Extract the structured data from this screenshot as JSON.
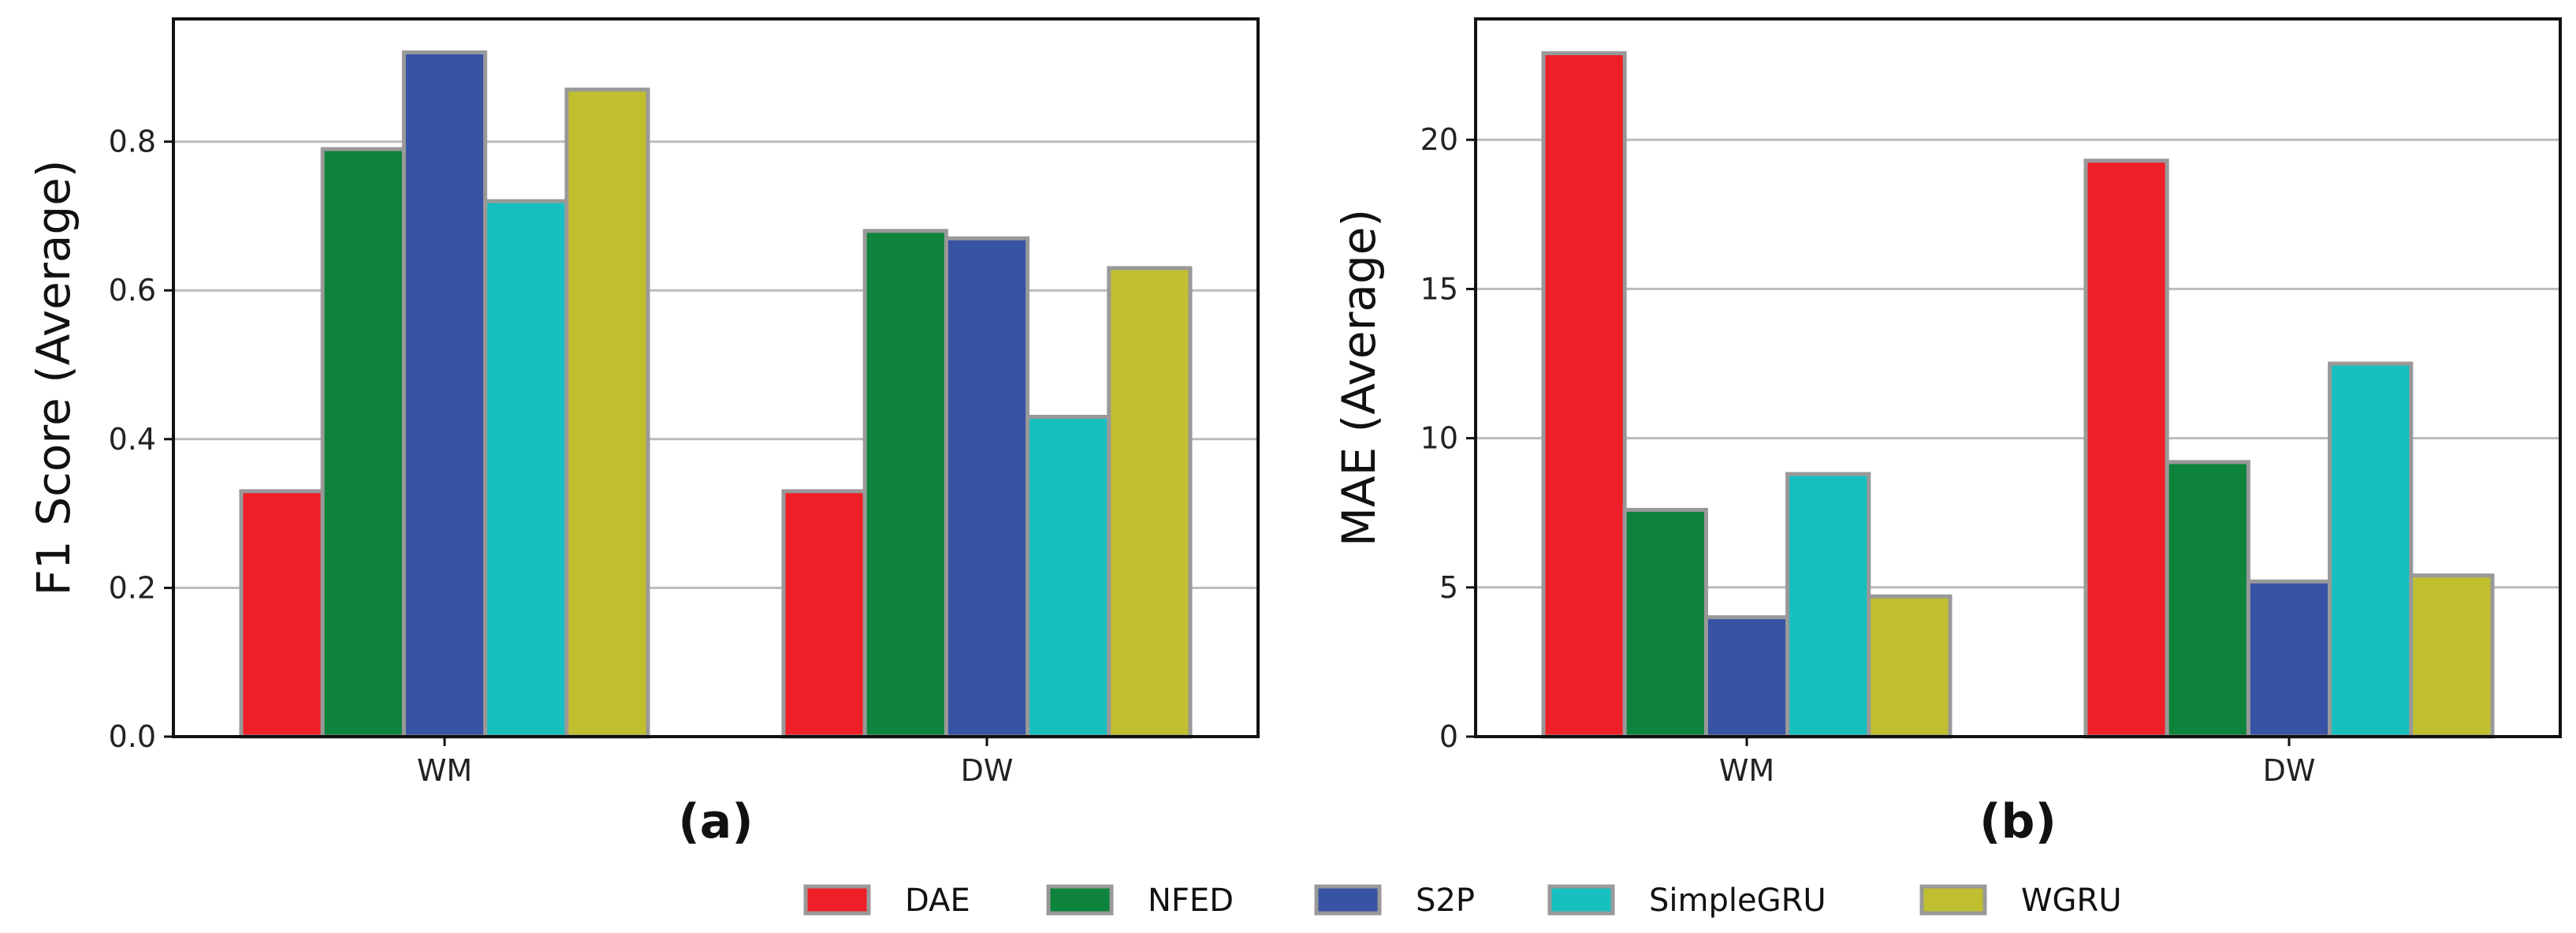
{
  "colors": {
    "DAE": "#ee1f26",
    "NFED": "#0d833c",
    "S2P": "#3852a4",
    "SimpleGRU": "#18bfbf",
    "WGRU": "#bfbf30",
    "edge": "#999999",
    "grid": "#bbbbbb"
  },
  "legend": {
    "items": [
      "DAE",
      "NFED",
      "S2P",
      "SimpleGRU",
      "WGRU"
    ]
  },
  "chart_data": [
    {
      "type": "bar",
      "panel_label": "(a)",
      "categories": [
        "WM",
        "DW"
      ],
      "series": [
        {
          "name": "DAE",
          "values": [
            0.33,
            0.33
          ]
        },
        {
          "name": "NFED",
          "values": [
            0.79,
            0.68
          ]
        },
        {
          "name": "S2P",
          "values": [
            0.92,
            0.67
          ]
        },
        {
          "name": "SimpleGRU",
          "values": [
            0.72,
            0.43
          ]
        },
        {
          "name": "WGRU",
          "values": [
            0.87,
            0.63
          ]
        }
      ],
      "ylabel": "F1 Score (Average)",
      "ylim": [
        0,
        0.965
      ],
      "yticks": [
        0.0,
        0.2,
        0.4,
        0.6,
        0.8
      ],
      "ytick_labels": [
        "0.0",
        "0.2",
        "0.4",
        "0.6",
        "0.8"
      ],
      "grid": "y"
    },
    {
      "type": "bar",
      "panel_label": "(b)",
      "categories": [
        "WM",
        "DW"
      ],
      "series": [
        {
          "name": "DAE",
          "values": [
            22.9,
            19.3
          ]
        },
        {
          "name": "NFED",
          "values": [
            7.6,
            9.2
          ]
        },
        {
          "name": "S2P",
          "values": [
            4.0,
            5.2
          ]
        },
        {
          "name": "SimpleGRU",
          "values": [
            8.8,
            12.5
          ]
        },
        {
          "name": "WGRU",
          "values": [
            4.7,
            5.4
          ]
        }
      ],
      "ylabel": "MAE (Average)",
      "ylim": [
        0,
        24.05
      ],
      "yticks": [
        0,
        5,
        10,
        15,
        20
      ],
      "ytick_labels": [
        "0",
        "5",
        "10",
        "15",
        "20"
      ],
      "grid": "y"
    }
  ]
}
